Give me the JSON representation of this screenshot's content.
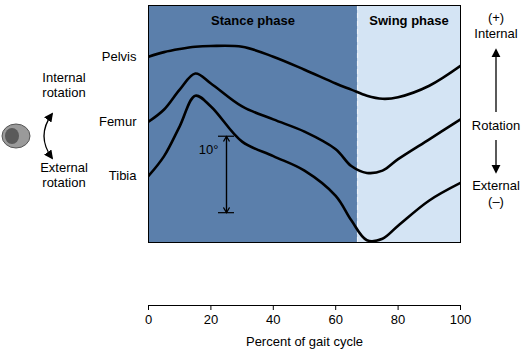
{
  "chart_data": {
    "type": "line",
    "x_label": "Percent of gait cycle",
    "xlim": [
      0,
      100
    ],
    "xticks": [
      0,
      20,
      40,
      60,
      80,
      100
    ],
    "ylim": [
      0,
      31
    ],
    "yticks": [],
    "tick_labels": "x",
    "x": [
      0,
      5,
      10,
      15,
      20,
      30,
      40,
      50,
      60,
      65,
      70,
      75,
      80,
      90,
      100
    ],
    "series": [
      {
        "name": "Pelvis",
        "color": "#000000",
        "values": [
          24.3,
          24.9,
          25.3,
          25.6,
          25.7,
          25.6,
          24.3,
          22.6,
          20.8,
          20.0,
          19.2,
          18.8,
          19.0,
          20.5,
          23.1
        ]
      },
      {
        "name": "Femur",
        "color": "#000000",
        "values": [
          15.8,
          17.4,
          20.0,
          22.1,
          20.8,
          17.8,
          16.1,
          14.5,
          12.2,
          10.0,
          9.1,
          9.4,
          10.9,
          13.5,
          16.1
        ]
      },
      {
        "name": "Tibia",
        "color": "#000000",
        "values": [
          8.7,
          11.3,
          15.2,
          19.2,
          17.8,
          13.2,
          11.3,
          9.4,
          6.1,
          2.9,
          0.3,
          0.5,
          2.2,
          5.5,
          7.8
        ]
      }
    ],
    "phases": [
      {
        "name": "Stance phase",
        "start": 0,
        "end": 67,
        "color": "#5b7fab"
      },
      {
        "name": "Swing phase",
        "start": 67,
        "end": 100,
        "color": "#d4e4f4"
      }
    ],
    "scale_bar": {
      "label": "10°",
      "x": 25,
      "from": 3.9,
      "to": 13.9
    },
    "right_axis": {
      "positive": "(+)",
      "positive_label": "Internal",
      "title": "Rotation",
      "negative_label": "External",
      "negative": "(–)"
    },
    "rotation_key": [
      "Internal rotation",
      "External rotation"
    ]
  }
}
